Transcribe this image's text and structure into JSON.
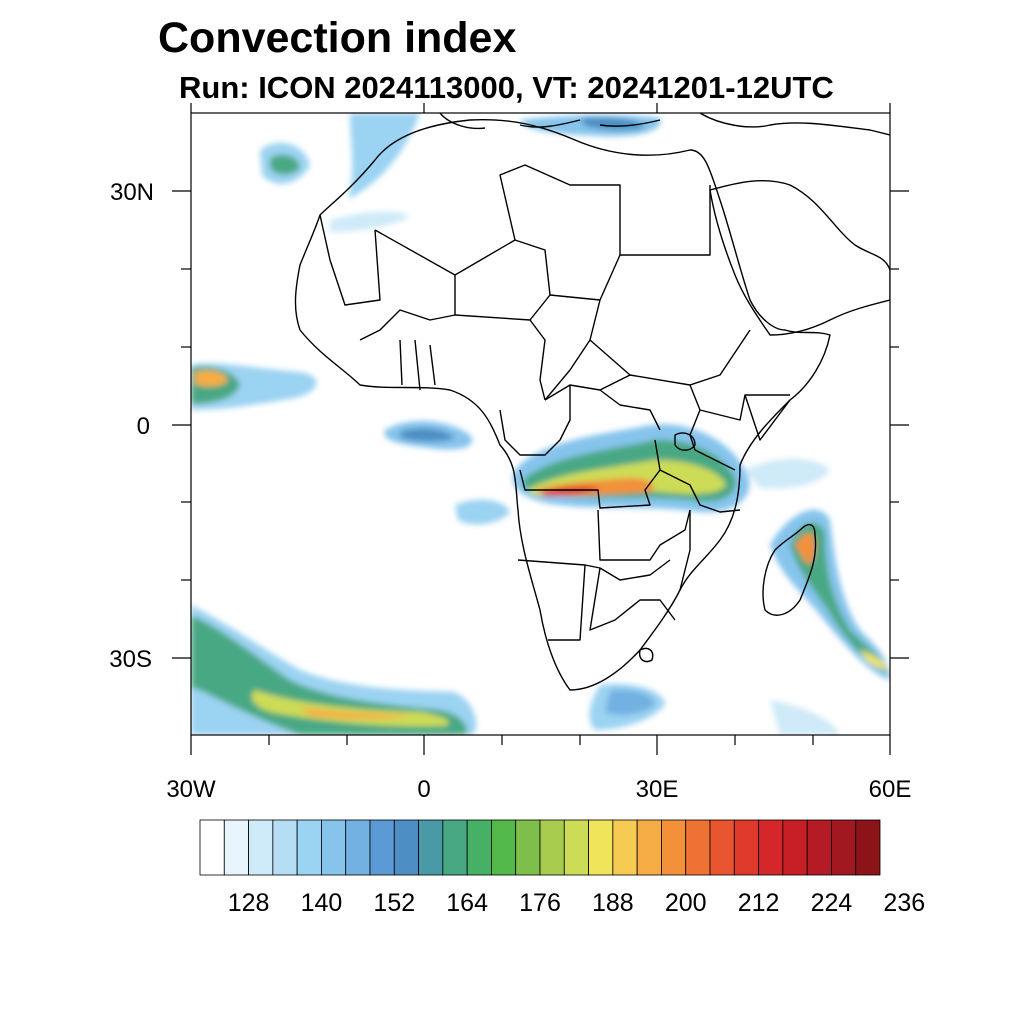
{
  "header": {
    "title": "Convection index",
    "subtitle": "Run: ICON 2024113000,  VT: 20241201-12UTC"
  },
  "map": {
    "lon_range": [
      -30,
      60
    ],
    "lat_range": [
      -40,
      40
    ],
    "lat_tick_labels": [
      "30N",
      "0",
      "30S"
    ],
    "lon_tick_labels": [
      "30W",
      "0",
      "30E",
      "60E"
    ],
    "fields": [
      {
        "region": "Congo Basin / Angola - Tanzania band",
        "level": 200
      },
      {
        "region": "Madagascar east coast",
        "level": 212
      },
      {
        "region": "Southern Ocean cyclone band",
        "level": 176
      },
      {
        "region": "West Atlantic ITCZ cell",
        "level": 200
      },
      {
        "region": "Mediterranean",
        "level": 152
      },
      {
        "region": "Morocco coast",
        "level": 140
      },
      {
        "region": "Gulf of Guinea",
        "level": 152
      },
      {
        "region": "Southern Africa coast",
        "level": 152
      }
    ]
  },
  "colorbar": {
    "labels": [
      "128",
      "140",
      "152",
      "164",
      "176",
      "188",
      "200",
      "212",
      "224",
      "236"
    ],
    "colors": [
      "#ffffff",
      "#e8f5fc",
      "#cfeaf8",
      "#b5def5",
      "#9bd3f2",
      "#86c4ec",
      "#72b1e2",
      "#5b99d4",
      "#4d8fc4",
      "#4a99a6",
      "#48a884",
      "#46b066",
      "#52b84a",
      "#7dbf4a",
      "#a8cc4e",
      "#cddc56",
      "#f0e45a",
      "#f6cb52",
      "#f6ad45",
      "#f3903a",
      "#ee7233",
      "#e8552f",
      "#df392c",
      "#d5272a",
      "#c81e26",
      "#b41b24",
      "#a21820",
      "#8c1418"
    ]
  }
}
